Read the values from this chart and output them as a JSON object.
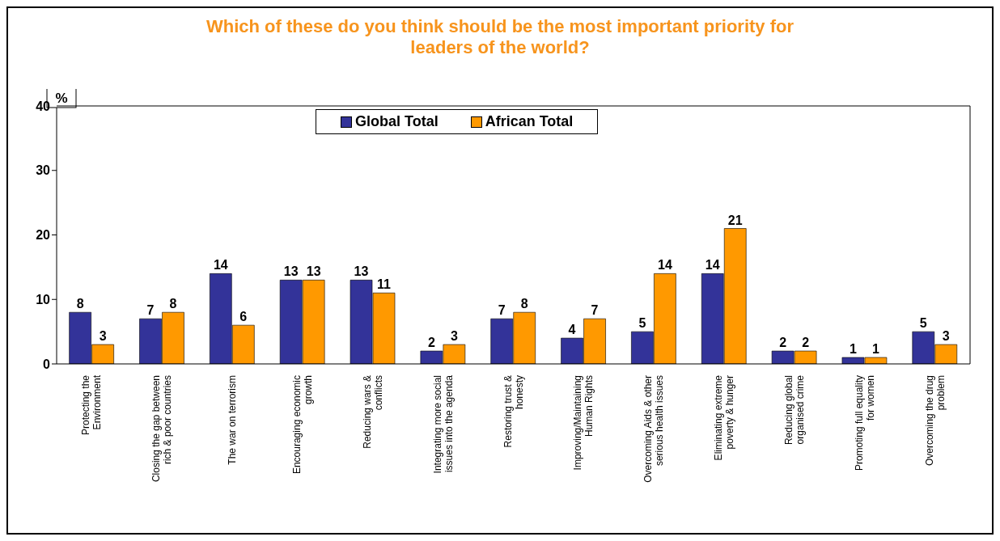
{
  "chart_data": {
    "type": "bar",
    "title": "Which of these do you think should be the most important priority for leaders of the world?",
    "ylabel": "%",
    "categories": [
      "Protecting the Environment",
      "Closing the gap between rich & poor countries",
      "The war on terrorism",
      "Encouraging economic growth",
      "Reducing wars & conflicts",
      "Integrating more social issues into the agenda",
      "Restoring trust & honesty",
      "Improving/Maintaining Human Rights",
      "Overcoming Aids & other serious health issues",
      "Eliminating extreme poverty & hunger",
      "Reducing global organised crime",
      "Promoting full equality for women",
      "Overcoming the drug problem"
    ],
    "series": [
      {
        "name": "Global Total",
        "color": "#333399",
        "values": [
          8,
          7,
          14,
          13,
          13,
          2,
          7,
          4,
          5,
          14,
          2,
          1,
          5
        ]
      },
      {
        "name": "African Total",
        "color": "#ff9900",
        "values": [
          3,
          8,
          6,
          13,
          11,
          3,
          8,
          7,
          14,
          21,
          2,
          1,
          3
        ]
      }
    ],
    "ylim": [
      0,
      40
    ],
    "yticks": [
      0,
      10,
      20,
      30,
      40
    ],
    "grid": false,
    "legend": "top",
    "data_labels": true
  }
}
